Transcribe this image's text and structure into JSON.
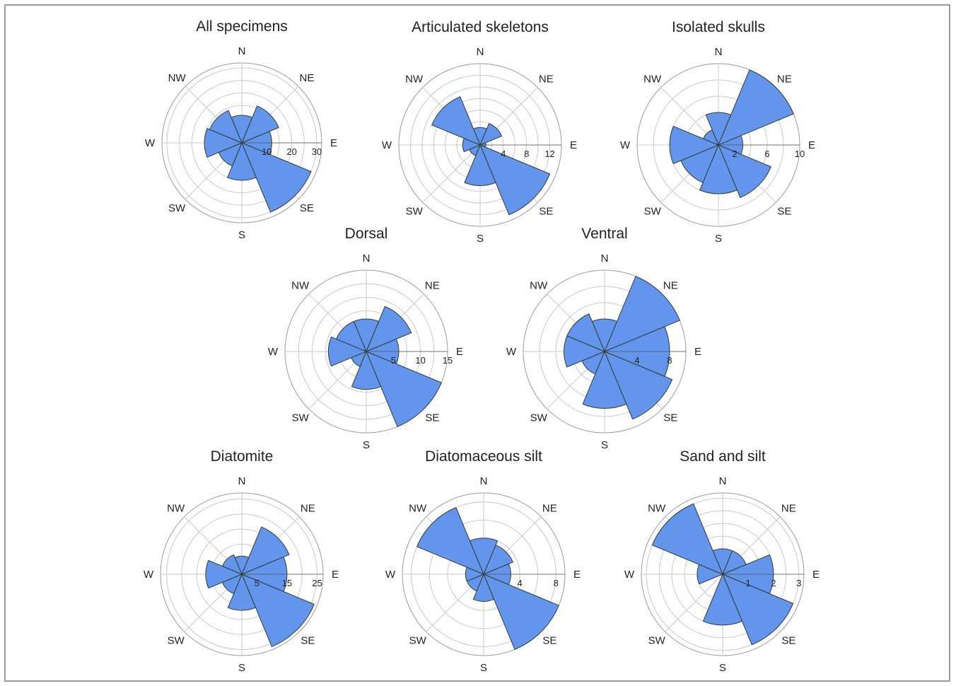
{
  "figure": {
    "frame_color": "#9a9a9a",
    "bar_color": "#6495ed",
    "edge_color": "#2f3f33"
  },
  "directions": [
    "N",
    "NE",
    "E",
    "SE",
    "S",
    "SW",
    "W",
    "NW"
  ],
  "chart_data": [
    {
      "type": "rose",
      "title": "All specimens",
      "rmax": 32,
      "ticks": [
        10,
        20,
        30
      ],
      "rings": [
        10,
        15,
        20,
        25,
        30,
        32
      ],
      "categories": [
        "N",
        "NE",
        "E",
        "SE",
        "S",
        "SW",
        "W",
        "NW"
      ],
      "values": [
        11,
        16,
        12,
        30,
        15,
        10,
        15,
        14
      ]
    },
    {
      "type": "rose",
      "title": "Articulated skeletons",
      "rmax": 14,
      "ticks": [
        4,
        8,
        12
      ],
      "rings": [
        2,
        4,
        6,
        8,
        10,
        12,
        14
      ],
      "categories": [
        "N",
        "NE",
        "E",
        "SE",
        "S",
        "SW",
        "W",
        "NW"
      ],
      "values": [
        3,
        4,
        1,
        13,
        7,
        2,
        3,
        9
      ]
    },
    {
      "type": "rose",
      "title": "Isolated skulls",
      "rmax": 10,
      "ticks": [
        2,
        6,
        10
      ],
      "rings": [
        2,
        4,
        6,
        8,
        10
      ],
      "categories": [
        "N",
        "NE",
        "E",
        "SE",
        "S",
        "SW",
        "W",
        "NW"
      ],
      "values": [
        4,
        10,
        3,
        7,
        6,
        5,
        6,
        2
      ]
    },
    {
      "type": "rose",
      "title": "Dorsal",
      "rmax": 15,
      "ticks": [
        5,
        10,
        15
      ],
      "rings": [
        5,
        7.5,
        10,
        12.5,
        15
      ],
      "categories": [
        "N",
        "NE",
        "E",
        "SE",
        "S",
        "SW",
        "W",
        "NW"
      ],
      "values": [
        6,
        9,
        6,
        15,
        7,
        3,
        7,
        6
      ]
    },
    {
      "type": "rose",
      "title": "Ventral",
      "rmax": 10,
      "ticks": [
        4,
        8
      ],
      "rings": [
        2,
        4,
        6,
        8,
        10
      ],
      "categories": [
        "N",
        "NE",
        "E",
        "SE",
        "S",
        "SW",
        "W",
        "NW"
      ],
      "values": [
        4,
        10,
        8,
        9,
        7,
        3,
        5,
        5
      ]
    },
    {
      "type": "rose",
      "title": "Diatomite",
      "rmax": 27,
      "ticks": [
        5,
        15,
        25
      ],
      "rings": [
        5,
        10,
        15,
        20,
        25,
        27
      ],
      "categories": [
        "N",
        "NE",
        "E",
        "SE",
        "S",
        "SW",
        "W",
        "NW"
      ],
      "values": [
        6,
        17,
        15,
        26,
        12,
        7,
        12,
        7
      ]
    },
    {
      "type": "rose",
      "title": "Diatomaceous silt",
      "rmax": 9,
      "ticks": [
        4,
        8
      ],
      "rings": [
        2,
        4,
        6,
        8,
        9
      ],
      "categories": [
        "N",
        "NE",
        "E",
        "SE",
        "S",
        "SW",
        "W",
        "NW"
      ],
      "values": [
        4,
        3.5,
        3,
        9,
        3,
        2,
        2,
        8
      ]
    },
    {
      "type": "rose",
      "title": "Sand and silt",
      "rmax": 3.2,
      "ticks": [
        1,
        2,
        3
      ],
      "rings": [
        1,
        1.5,
        2,
        2.5,
        3,
        3.2
      ],
      "categories": [
        "N",
        "NE",
        "E",
        "SE",
        "S",
        "SW",
        "W",
        "NW"
      ],
      "values": [
        1,
        1,
        2,
        3,
        2,
        0,
        1,
        3
      ]
    }
  ]
}
